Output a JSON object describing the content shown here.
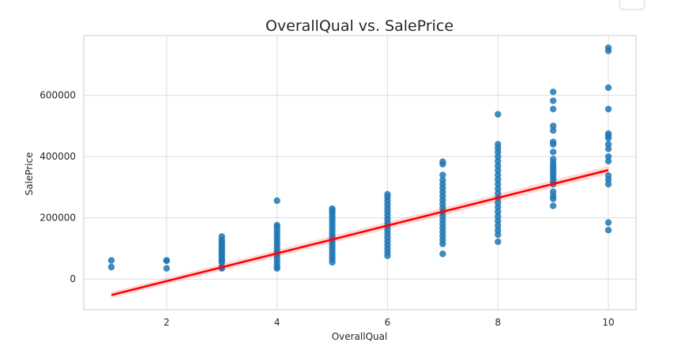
{
  "chart_data": {
    "type": "scatter",
    "title": "OverallQual vs. SalePrice",
    "xlabel": "OverallQual",
    "ylabel": "SalePrice",
    "xlim": [
      0.5,
      10.5
    ],
    "ylim": [
      -100000,
      795000
    ],
    "xticks": [
      2,
      4,
      6,
      8,
      10
    ],
    "yticks": [
      0,
      200000,
      400000,
      600000
    ],
    "grid": true,
    "regression": {
      "color": "#ff0000",
      "x": [
        1,
        10
      ],
      "y": [
        -52000,
        356000
      ]
    },
    "series": [
      {
        "color": "#1f77b4",
        "points": [
          [
            1,
            39300
          ],
          [
            1,
            61000
          ],
          [
            2,
            35300
          ],
          [
            2,
            60000
          ],
          [
            2,
            61000
          ],
          [
            3,
            35000
          ],
          [
            3,
            40000
          ],
          [
            3,
            55000
          ],
          [
            3,
            60000
          ],
          [
            3,
            67000
          ],
          [
            3,
            75000
          ],
          [
            3,
            82000
          ],
          [
            3,
            90000
          ],
          [
            3,
            97000
          ],
          [
            3,
            105000
          ],
          [
            3,
            113000
          ],
          [
            3,
            120000
          ],
          [
            3,
            128000
          ],
          [
            3,
            139000
          ],
          [
            4,
            34900
          ],
          [
            4,
            40000
          ],
          [
            4,
            50000
          ],
          [
            4,
            60000
          ],
          [
            4,
            70000
          ],
          [
            4,
            80000
          ],
          [
            4,
            90000
          ],
          [
            4,
            100000
          ],
          [
            4,
            110000
          ],
          [
            4,
            120000
          ],
          [
            4,
            130000
          ],
          [
            4,
            140000
          ],
          [
            4,
            150000
          ],
          [
            4,
            160000
          ],
          [
            4,
            170000
          ],
          [
            4,
            176000
          ],
          [
            4,
            256000
          ],
          [
            5,
            55000
          ],
          [
            5,
            65000
          ],
          [
            5,
            75000
          ],
          [
            5,
            85000
          ],
          [
            5,
            95000
          ],
          [
            5,
            105000
          ],
          [
            5,
            115000
          ],
          [
            5,
            125000
          ],
          [
            5,
            135000
          ],
          [
            5,
            145000
          ],
          [
            5,
            155000
          ],
          [
            5,
            165000
          ],
          [
            5,
            175000
          ],
          [
            5,
            185000
          ],
          [
            5,
            195000
          ],
          [
            5,
            205000
          ],
          [
            5,
            215000
          ],
          [
            5,
            223000
          ],
          [
            5,
            230000
          ],
          [
            6,
            76000
          ],
          [
            6,
            88000
          ],
          [
            6,
            100000
          ],
          [
            6,
            112000
          ],
          [
            6,
            124000
          ],
          [
            6,
            136000
          ],
          [
            6,
            148000
          ],
          [
            6,
            160000
          ],
          [
            6,
            172000
          ],
          [
            6,
            184000
          ],
          [
            6,
            196000
          ],
          [
            6,
            208000
          ],
          [
            6,
            220000
          ],
          [
            6,
            232000
          ],
          [
            6,
            244000
          ],
          [
            6,
            256000
          ],
          [
            6,
            268000
          ],
          [
            6,
            277000
          ],
          [
            7,
            82500
          ],
          [
            7,
            115000
          ],
          [
            7,
            128000
          ],
          [
            7,
            141000
          ],
          [
            7,
            154000
          ],
          [
            7,
            167000
          ],
          [
            7,
            180000
          ],
          [
            7,
            193000
          ],
          [
            7,
            206000
          ],
          [
            7,
            219000
          ],
          [
            7,
            232000
          ],
          [
            7,
            245000
          ],
          [
            7,
            258000
          ],
          [
            7,
            271000
          ],
          [
            7,
            284000
          ],
          [
            7,
            297000
          ],
          [
            7,
            310000
          ],
          [
            7,
            323000
          ],
          [
            7,
            340000
          ],
          [
            7,
            375000
          ],
          [
            7,
            383000
          ],
          [
            8,
            122000
          ],
          [
            8,
            145000
          ],
          [
            8,
            160000
          ],
          [
            8,
            175000
          ],
          [
            8,
            190000
          ],
          [
            8,
            205000
          ],
          [
            8,
            220000
          ],
          [
            8,
            235000
          ],
          [
            8,
            250000
          ],
          [
            8,
            265000
          ],
          [
            8,
            280000
          ],
          [
            8,
            295000
          ],
          [
            8,
            310000
          ],
          [
            8,
            325000
          ],
          [
            8,
            340000
          ],
          [
            8,
            355000
          ],
          [
            8,
            370000
          ],
          [
            8,
            385000
          ],
          [
            8,
            400000
          ],
          [
            8,
            415000
          ],
          [
            8,
            428000
          ],
          [
            8,
            440000
          ],
          [
            8,
            538000
          ],
          [
            9,
            239000
          ],
          [
            9,
            262000
          ],
          [
            9,
            272000
          ],
          [
            9,
            285000
          ],
          [
            9,
            310000
          ],
          [
            9,
            320000
          ],
          [
            9,
            330000
          ],
          [
            9,
            340000
          ],
          [
            9,
            350000
          ],
          [
            9,
            360000
          ],
          [
            9,
            370000
          ],
          [
            9,
            380000
          ],
          [
            9,
            392000
          ],
          [
            9,
            415000
          ],
          [
            9,
            440000
          ],
          [
            9,
            448000
          ],
          [
            9,
            485000
          ],
          [
            9,
            500000
          ],
          [
            9,
            555000
          ],
          [
            9,
            582000
          ],
          [
            9,
            611000
          ],
          [
            10,
            160000
          ],
          [
            10,
            184750
          ],
          [
            10,
            310000
          ],
          [
            10,
            325000
          ],
          [
            10,
            338000
          ],
          [
            10,
            385000
          ],
          [
            10,
            400000
          ],
          [
            10,
            425000
          ],
          [
            10,
            440000
          ],
          [
            10,
            460000
          ],
          [
            10,
            468000
          ],
          [
            10,
            475000
          ],
          [
            10,
            555000
          ],
          [
            10,
            625000
          ],
          [
            10,
            745000
          ],
          [
            10,
            755000
          ]
        ]
      }
    ]
  }
}
